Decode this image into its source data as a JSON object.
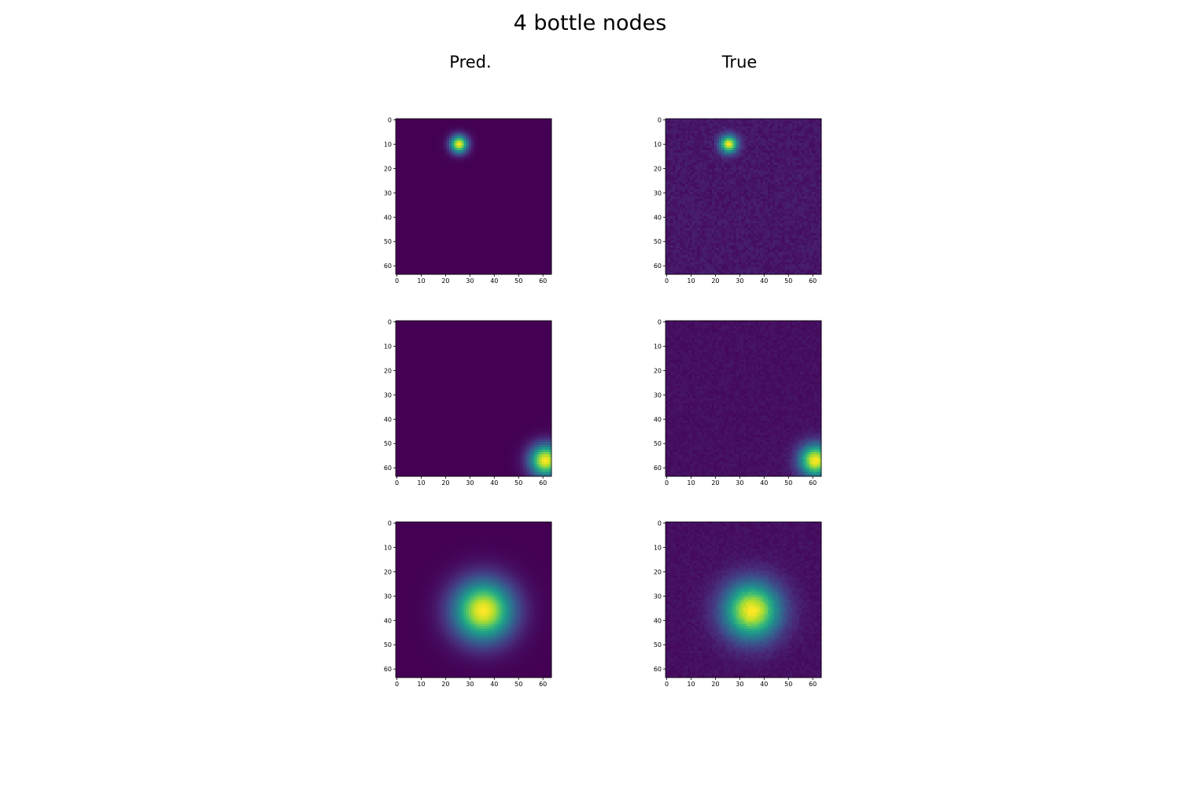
{
  "title": "4 bottle nodes",
  "column_titles": [
    "Pred.",
    "True"
  ],
  "chart_data": [
    {
      "type": "heatmap",
      "name": "Pred. row 1",
      "colormap": "viridis",
      "grid_size": 64,
      "xlim": [
        0,
        63
      ],
      "ylim": [
        63,
        0
      ],
      "xticks": [
        0,
        10,
        20,
        30,
        40,
        50,
        60
      ],
      "yticks": [
        0,
        10,
        20,
        30,
        40,
        50,
        60
      ],
      "blob": {
        "cx": 25.5,
        "cy": 10,
        "sigma": 2.5,
        "peak": 1.0
      },
      "background": 0.0,
      "noise": 0.0
    },
    {
      "type": "heatmap",
      "name": "True row 1",
      "colormap": "viridis",
      "grid_size": 64,
      "xlim": [
        0,
        63
      ],
      "ylim": [
        63,
        0
      ],
      "xticks": [
        0,
        10,
        20,
        30,
        40,
        50,
        60
      ],
      "yticks": [
        0,
        10,
        20,
        30,
        40,
        50,
        60
      ],
      "blob": {
        "cx": 25.5,
        "cy": 10,
        "sigma": 2.5,
        "peak": 1.0
      },
      "background": 0.06,
      "noise": 0.03
    },
    {
      "type": "heatmap",
      "name": "Pred. row 2",
      "colormap": "viridis",
      "grid_size": 64,
      "xlim": [
        0,
        63
      ],
      "ylim": [
        63,
        0
      ],
      "xticks": [
        0,
        10,
        20,
        30,
        40,
        50,
        60
      ],
      "yticks": [
        0,
        10,
        20,
        30,
        40,
        50,
        60
      ],
      "blob": {
        "cx": 61,
        "cy": 57,
        "sigma": 4.5,
        "peak": 1.0
      },
      "background": 0.0,
      "noise": 0.0
    },
    {
      "type": "heatmap",
      "name": "True row 2",
      "colormap": "viridis",
      "grid_size": 64,
      "xlim": [
        0,
        63
      ],
      "ylim": [
        63,
        0
      ],
      "xticks": [
        0,
        10,
        20,
        30,
        40,
        50,
        60
      ],
      "yticks": [
        0,
        10,
        20,
        30,
        40,
        50,
        60
      ],
      "blob": {
        "cx": 61,
        "cy": 57,
        "sigma": 4.5,
        "peak": 1.0
      },
      "background": 0.04,
      "noise": 0.02
    },
    {
      "type": "heatmap",
      "name": "Pred. row 3",
      "colormap": "viridis",
      "grid_size": 64,
      "xlim": [
        0,
        63
      ],
      "ylim": [
        63,
        0
      ],
      "xticks": [
        0,
        10,
        20,
        30,
        40,
        50,
        60
      ],
      "yticks": [
        0,
        10,
        20,
        30,
        40,
        50,
        60
      ],
      "blob": {
        "cx": 35.5,
        "cy": 36,
        "sigma": 8.5,
        "peak": 1.0
      },
      "background": 0.0,
      "noise": 0.0
    },
    {
      "type": "heatmap",
      "name": "True row 3",
      "colormap": "viridis",
      "grid_size": 64,
      "xlim": [
        0,
        63
      ],
      "ylim": [
        63,
        0
      ],
      "xticks": [
        0,
        10,
        20,
        30,
        40,
        50,
        60
      ],
      "yticks": [
        0,
        10,
        20,
        30,
        40,
        50,
        60
      ],
      "blob": {
        "cx": 35,
        "cy": 36,
        "sigma": 8.0,
        "peak": 1.0
      },
      "background": 0.04,
      "noise": 0.02
    }
  ]
}
